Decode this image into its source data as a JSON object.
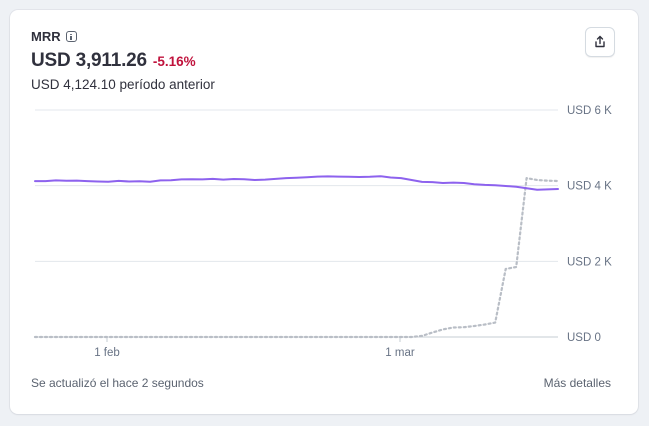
{
  "header": {
    "title": "MRR",
    "value": "USD 3,911.26",
    "delta": "-5.16%",
    "previous": "USD 4,124.10 período anterior"
  },
  "footer": {
    "updated": "Se actualizó el hace 2 segundos",
    "details": "Más detalles"
  },
  "colors": {
    "current_line": "#8d62ee",
    "previous_line": "#b9bec6",
    "delta": "#c0123c"
  },
  "icons": {
    "info": "info-icon",
    "share": "share-icon"
  },
  "chart_data": {
    "type": "line",
    "x_ticks": [
      "1 feb",
      "1 mar"
    ],
    "y_ticks": [
      "USD 0",
      "USD 2 K",
      "USD 4 K",
      "USD 6 K"
    ],
    "ylim": [
      0,
      6000
    ],
    "grid": true,
    "series": [
      {
        "style": "solid",
        "values": [
          4120,
          4120,
          4140,
          4130,
          4135,
          4120,
          4110,
          4105,
          4125,
          4110,
          4115,
          4105,
          4140,
          4145,
          4165,
          4170,
          4165,
          4180,
          4160,
          4175,
          4170,
          4150,
          4160,
          4180,
          4200,
          4210,
          4225,
          4240,
          4245,
          4240,
          4235,
          4230,
          4235,
          4250,
          4215,
          4200,
          4150,
          4100,
          4095,
          4070,
          4080,
          4070,
          4040,
          4020,
          4010,
          3990,
          3970,
          3930,
          3890,
          3900,
          3911
        ]
      },
      {
        "style": "dashed",
        "values": [
          0,
          0,
          0,
          0,
          0,
          0,
          0,
          0,
          0,
          0,
          0,
          0,
          0,
          0,
          0,
          0,
          0,
          0,
          0,
          0,
          0,
          0,
          0,
          0,
          0,
          0,
          0,
          0,
          0,
          0,
          0,
          0,
          0,
          0,
          0,
          0,
          0,
          30,
          120,
          200,
          250,
          260,
          290,
          330,
          380,
          1800,
          1850,
          4200,
          4150,
          4130,
          4124
        ]
      }
    ]
  }
}
